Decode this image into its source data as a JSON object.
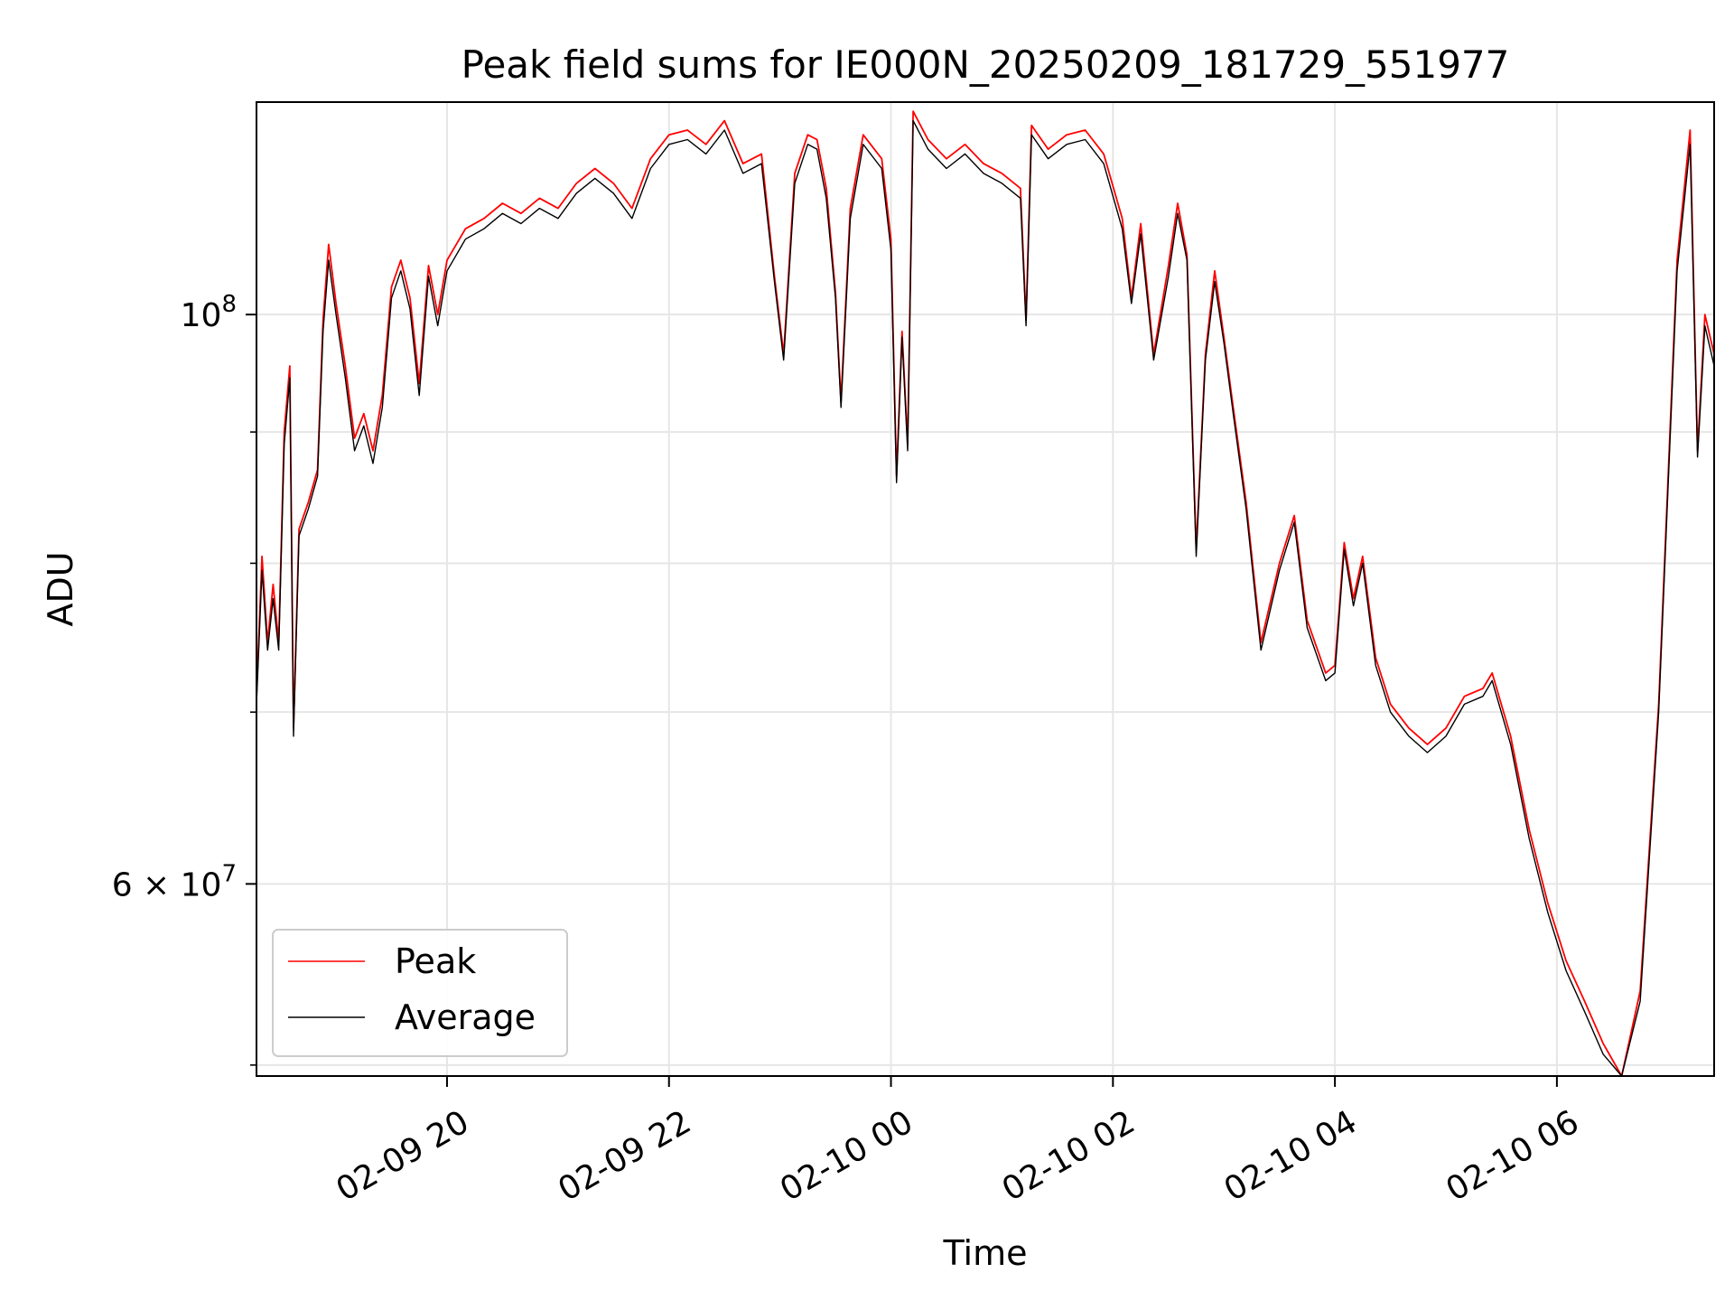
{
  "chart_data": {
    "type": "line",
    "title": "Peak field sums for IE000N_20250209_181729_551977",
    "xlabel": "Time",
    "ylabel": "ADU",
    "yscale": "log",
    "grid": true,
    "legend_position": "lower-left",
    "xlim": [
      "2025-02-09 18:17",
      "2025-02-10 07:25"
    ],
    "ylim": [
      50500000,
      121000000
    ],
    "x_ticks": [
      {
        "t": "2025-02-09 20:00",
        "label": "02-09 20"
      },
      {
        "t": "2025-02-09 22:00",
        "label": "02-09 22"
      },
      {
        "t": "2025-02-10 00:00",
        "label": "02-10 00"
      },
      {
        "t": "2025-02-10 02:00",
        "label": "02-10 02"
      },
      {
        "t": "2025-02-10 04:00",
        "label": "02-10 04"
      },
      {
        "t": "2025-02-10 06:00",
        "label": "02-10 06"
      }
    ],
    "y_major_ticks": [
      {
        "value": 100000000,
        "base": "10",
        "exp": "8",
        "prefix": ""
      },
      {
        "value": 60000000,
        "base": "10",
        "exp": "7",
        "prefix": "6 × "
      }
    ],
    "y_minor_ticks": [
      51000000,
      70000000,
      80000000,
      90000000
    ],
    "series": [
      {
        "name": "Peak",
        "color": "#ff0000",
        "points": [
          [
            "2025-02-09 18:17",
            71000000
          ],
          [
            "2025-02-09 18:20",
            80500000
          ],
          [
            "2025-02-09 18:23",
            74500000
          ],
          [
            "2025-02-09 18:26",
            78500000
          ],
          [
            "2025-02-09 18:29",
            74500000
          ],
          [
            "2025-02-09 18:32",
            90000000
          ],
          [
            "2025-02-09 18:35",
            95500000
          ],
          [
            "2025-02-09 18:37",
            69000000
          ],
          [
            "2025-02-09 18:40",
            82500000
          ],
          [
            "2025-02-09 18:45",
            84500000
          ],
          [
            "2025-02-09 18:50",
            87000000
          ],
          [
            "2025-02-09 18:53",
            99500000
          ],
          [
            "2025-02-09 18:56",
            106500000
          ],
          [
            "2025-02-09 19:00",
            101000000
          ],
          [
            "2025-02-09 19:05",
            95500000
          ],
          [
            "2025-02-09 19:10",
            89500000
          ],
          [
            "2025-02-09 19:15",
            91500000
          ],
          [
            "2025-02-09 19:20",
            88500000
          ],
          [
            "2025-02-09 19:25",
            93000000
          ],
          [
            "2025-02-09 19:30",
            102500000
          ],
          [
            "2025-02-09 19:35",
            105000000
          ],
          [
            "2025-02-09 19:40",
            101500000
          ],
          [
            "2025-02-09 19:45",
            94000000
          ],
          [
            "2025-02-09 19:50",
            104500000
          ],
          [
            "2025-02-09 19:55",
            100000000
          ],
          [
            "2025-02-09 20:00",
            105000000
          ],
          [
            "2025-02-09 20:10",
            108000000
          ],
          [
            "2025-02-09 20:20",
            109000000
          ],
          [
            "2025-02-09 20:30",
            110500000
          ],
          [
            "2025-02-09 20:40",
            109500000
          ],
          [
            "2025-02-09 20:50",
            111000000
          ],
          [
            "2025-02-09 21:00",
            110000000
          ],
          [
            "2025-02-09 21:10",
            112500000
          ],
          [
            "2025-02-09 21:20",
            114000000
          ],
          [
            "2025-02-09 21:30",
            112500000
          ],
          [
            "2025-02-09 21:40",
            110000000
          ],
          [
            "2025-02-09 21:50",
            115000000
          ],
          [
            "2025-02-09 22:00",
            117500000
          ],
          [
            "2025-02-09 22:10",
            118000000
          ],
          [
            "2025-02-09 22:20",
            116500000
          ],
          [
            "2025-02-09 22:30",
            119000000
          ],
          [
            "2025-02-09 22:40",
            114500000
          ],
          [
            "2025-02-09 22:50",
            115500000
          ],
          [
            "2025-02-09 22:57",
            103500000
          ],
          [
            "2025-02-09 23:02",
            96500000
          ],
          [
            "2025-02-09 23:08",
            113500000
          ],
          [
            "2025-02-09 23:15",
            117500000
          ],
          [
            "2025-02-09 23:20",
            117000000
          ],
          [
            "2025-02-09 23:25",
            112000000
          ],
          [
            "2025-02-09 23:30",
            102000000
          ],
          [
            "2025-02-09 23:33",
            92500000
          ],
          [
            "2025-02-09 23:38",
            110000000
          ],
          [
            "2025-02-09 23:45",
            117500000
          ],
          [
            "2025-02-09 23:55",
            115000000
          ],
          [
            "2025-02-10 00:00",
            107000000
          ],
          [
            "2025-02-10 00:03",
            86500000
          ],
          [
            "2025-02-10 00:06",
            98500000
          ],
          [
            "2025-02-10 00:09",
            89000000
          ],
          [
            "2025-02-10 00:12",
            120000000
          ],
          [
            "2025-02-10 00:20",
            117000000
          ],
          [
            "2025-02-10 00:30",
            115000000
          ],
          [
            "2025-02-10 00:40",
            116500000
          ],
          [
            "2025-02-10 00:50",
            114500000
          ],
          [
            "2025-02-10 01:00",
            113500000
          ],
          [
            "2025-02-10 01:10",
            112000000
          ],
          [
            "2025-02-10 01:13",
            99500000
          ],
          [
            "2025-02-10 01:16",
            118500000
          ],
          [
            "2025-02-10 01:25",
            116000000
          ],
          [
            "2025-02-10 01:35",
            117500000
          ],
          [
            "2025-02-10 01:45",
            118000000
          ],
          [
            "2025-02-10 01:55",
            115500000
          ],
          [
            "2025-02-10 02:05",
            109000000
          ],
          [
            "2025-02-10 02:10",
            101500000
          ],
          [
            "2025-02-10 02:15",
            108500000
          ],
          [
            "2025-02-10 02:22",
            96500000
          ],
          [
            "2025-02-10 02:30",
            104500000
          ],
          [
            "2025-02-10 02:35",
            110500000
          ],
          [
            "2025-02-10 02:40",
            105500000
          ],
          [
            "2025-02-10 02:45",
            81000000
          ],
          [
            "2025-02-10 02:50",
            96500000
          ],
          [
            "2025-02-10 02:55",
            104000000
          ],
          [
            "2025-02-10 03:00",
            98000000
          ],
          [
            "2025-02-10 03:05",
            92000000
          ],
          [
            "2025-02-10 03:12",
            84500000
          ],
          [
            "2025-02-10 03:20",
            74500000
          ],
          [
            "2025-02-10 03:30",
            80000000
          ],
          [
            "2025-02-10 03:38",
            83500000
          ],
          [
            "2025-02-10 03:45",
            76000000
          ],
          [
            "2025-02-10 03:55",
            72500000
          ],
          [
            "2025-02-10 04:00",
            73000000
          ],
          [
            "2025-02-10 04:05",
            81500000
          ],
          [
            "2025-02-10 04:10",
            77500000
          ],
          [
            "2025-02-10 04:15",
            80500000
          ],
          [
            "2025-02-10 04:22",
            73500000
          ],
          [
            "2025-02-10 04:30",
            70500000
          ],
          [
            "2025-02-10 04:40",
            69000000
          ],
          [
            "2025-02-10 04:50",
            68000000
          ],
          [
            "2025-02-10 05:00",
            69000000
          ],
          [
            "2025-02-10 05:10",
            71000000
          ],
          [
            "2025-02-10 05:20",
            71500000
          ],
          [
            "2025-02-10 05:25",
            72500000
          ],
          [
            "2025-02-10 05:35",
            68500000
          ],
          [
            "2025-02-10 05:45",
            63000000
          ],
          [
            "2025-02-10 05:55",
            59000000
          ],
          [
            "2025-02-10 06:05",
            56000000
          ],
          [
            "2025-02-10 06:15",
            54000000
          ],
          [
            "2025-02-10 06:25",
            52000000
          ],
          [
            "2025-02-10 06:35",
            50500000
          ],
          [
            "2025-02-10 06:45",
            54500000
          ],
          [
            "2025-02-10 06:55",
            70500000
          ],
          [
            "2025-02-10 07:05",
            105000000
          ],
          [
            "2025-02-10 07:12",
            118000000
          ],
          [
            "2025-02-10 07:16",
            88500000
          ],
          [
            "2025-02-10 07:20",
            100000000
          ],
          [
            "2025-02-10 07:25",
            96500000
          ]
        ]
      },
      {
        "name": "Average",
        "color": "#000000",
        "points": [
          [
            "2025-02-09 18:17",
            70500000
          ],
          [
            "2025-02-09 18:20",
            79500000
          ],
          [
            "2025-02-09 18:23",
            74000000
          ],
          [
            "2025-02-09 18:26",
            77500000
          ],
          [
            "2025-02-09 18:29",
            74000000
          ],
          [
            "2025-02-09 18:32",
            89000000
          ],
          [
            "2025-02-09 18:35",
            94500000
          ],
          [
            "2025-02-09 18:37",
            68500000
          ],
          [
            "2025-02-09 18:40",
            82000000
          ],
          [
            "2025-02-09 18:45",
            84000000
          ],
          [
            "2025-02-09 18:50",
            86500000
          ],
          [
            "2025-02-09 18:53",
            98500000
          ],
          [
            "2025-02-09 18:56",
            105000000
          ],
          [
            "2025-02-09 19:00",
            100000000
          ],
          [
            "2025-02-09 19:05",
            94500000
          ],
          [
            "2025-02-09 19:10",
            88500000
          ],
          [
            "2025-02-09 19:15",
            90500000
          ],
          [
            "2025-02-09 19:20",
            87500000
          ],
          [
            "2025-02-09 19:25",
            92000000
          ],
          [
            "2025-02-09 19:30",
            101500000
          ],
          [
            "2025-02-09 19:35",
            104000000
          ],
          [
            "2025-02-09 19:40",
            100500000
          ],
          [
            "2025-02-09 19:45",
            93000000
          ],
          [
            "2025-02-09 19:50",
            103500000
          ],
          [
            "2025-02-09 19:55",
            99000000
          ],
          [
            "2025-02-09 20:00",
            104000000
          ],
          [
            "2025-02-09 20:10",
            107000000
          ],
          [
            "2025-02-09 20:20",
            108000000
          ],
          [
            "2025-02-09 20:30",
            109500000
          ],
          [
            "2025-02-09 20:40",
            108500000
          ],
          [
            "2025-02-09 20:50",
            110000000
          ],
          [
            "2025-02-09 21:00",
            109000000
          ],
          [
            "2025-02-09 21:10",
            111500000
          ],
          [
            "2025-02-09 21:20",
            113000000
          ],
          [
            "2025-02-09 21:30",
            111500000
          ],
          [
            "2025-02-09 21:40",
            109000000
          ],
          [
            "2025-02-09 21:50",
            114000000
          ],
          [
            "2025-02-09 22:00",
            116500000
          ],
          [
            "2025-02-09 22:10",
            117000000
          ],
          [
            "2025-02-09 22:20",
            115500000
          ],
          [
            "2025-02-09 22:30",
            118000000
          ],
          [
            "2025-02-09 22:40",
            113500000
          ],
          [
            "2025-02-09 22:50",
            114500000
          ],
          [
            "2025-02-09 22:57",
            103000000
          ],
          [
            "2025-02-09 23:02",
            96000000
          ],
          [
            "2025-02-09 23:08",
            112500000
          ],
          [
            "2025-02-09 23:15",
            116500000
          ],
          [
            "2025-02-09 23:20",
            116000000
          ],
          [
            "2025-02-09 23:25",
            111000000
          ],
          [
            "2025-02-09 23:30",
            101500000
          ],
          [
            "2025-02-09 23:33",
            92000000
          ],
          [
            "2025-02-09 23:38",
            109000000
          ],
          [
            "2025-02-09 23:45",
            116500000
          ],
          [
            "2025-02-09 23:55",
            114000000
          ],
          [
            "2025-02-10 00:00",
            106000000
          ],
          [
            "2025-02-10 00:03",
            86000000
          ],
          [
            "2025-02-10 00:06",
            98000000
          ],
          [
            "2025-02-10 00:09",
            88500000
          ],
          [
            "2025-02-10 00:12",
            119000000
          ],
          [
            "2025-02-10 00:20",
            116000000
          ],
          [
            "2025-02-10 00:30",
            114000000
          ],
          [
            "2025-02-10 00:40",
            115500000
          ],
          [
            "2025-02-10 00:50",
            113500000
          ],
          [
            "2025-02-10 01:00",
            112500000
          ],
          [
            "2025-02-10 01:10",
            111000000
          ],
          [
            "2025-02-10 01:13",
            99000000
          ],
          [
            "2025-02-10 01:16",
            117500000
          ],
          [
            "2025-02-10 01:25",
            115000000
          ],
          [
            "2025-02-10 01:35",
            116500000
          ],
          [
            "2025-02-10 01:45",
            117000000
          ],
          [
            "2025-02-10 01:55",
            114500000
          ],
          [
            "2025-02-10 02:05",
            108000000
          ],
          [
            "2025-02-10 02:10",
            101000000
          ],
          [
            "2025-02-10 02:15",
            107500000
          ],
          [
            "2025-02-10 02:22",
            96000000
          ],
          [
            "2025-02-10 02:30",
            103500000
          ],
          [
            "2025-02-10 02:35",
            109500000
          ],
          [
            "2025-02-10 02:40",
            105000000
          ],
          [
            "2025-02-10 02:45",
            80500000
          ],
          [
            "2025-02-10 02:50",
            96000000
          ],
          [
            "2025-02-10 02:55",
            103000000
          ],
          [
            "2025-02-10 03:00",
            97500000
          ],
          [
            "2025-02-10 03:05",
            91500000
          ],
          [
            "2025-02-10 03:12",
            84000000
          ],
          [
            "2025-02-10 03:20",
            74000000
          ],
          [
            "2025-02-10 03:30",
            79500000
          ],
          [
            "2025-02-10 03:38",
            83000000
          ],
          [
            "2025-02-10 03:45",
            75500000
          ],
          [
            "2025-02-10 03:55",
            72000000
          ],
          [
            "2025-02-10 04:00",
            72500000
          ],
          [
            "2025-02-10 04:05",
            81000000
          ],
          [
            "2025-02-10 04:10",
            77000000
          ],
          [
            "2025-02-10 04:15",
            80000000
          ],
          [
            "2025-02-10 04:22",
            73000000
          ],
          [
            "2025-02-10 04:30",
            70000000
          ],
          [
            "2025-02-10 04:40",
            68500000
          ],
          [
            "2025-02-10 04:50",
            67500000
          ],
          [
            "2025-02-10 05:00",
            68500000
          ],
          [
            "2025-02-10 05:10",
            70500000
          ],
          [
            "2025-02-10 05:20",
            71000000
          ],
          [
            "2025-02-10 05:25",
            72000000
          ],
          [
            "2025-02-10 05:35",
            68000000
          ],
          [
            "2025-02-10 05:45",
            62500000
          ],
          [
            "2025-02-10 05:55",
            58500000
          ],
          [
            "2025-02-10 06:05",
            55500000
          ],
          [
            "2025-02-10 06:15",
            53500000
          ],
          [
            "2025-02-10 06:25",
            51500000
          ],
          [
            "2025-02-10 06:35",
            50500000
          ],
          [
            "2025-02-10 06:45",
            54000000
          ],
          [
            "2025-02-10 06:55",
            70000000
          ],
          [
            "2025-02-10 07:05",
            104000000
          ],
          [
            "2025-02-10 07:12",
            116500000
          ],
          [
            "2025-02-10 07:16",
            88000000
          ],
          [
            "2025-02-10 07:20",
            99000000
          ],
          [
            "2025-02-10 07:25",
            95500000
          ]
        ]
      }
    ]
  }
}
